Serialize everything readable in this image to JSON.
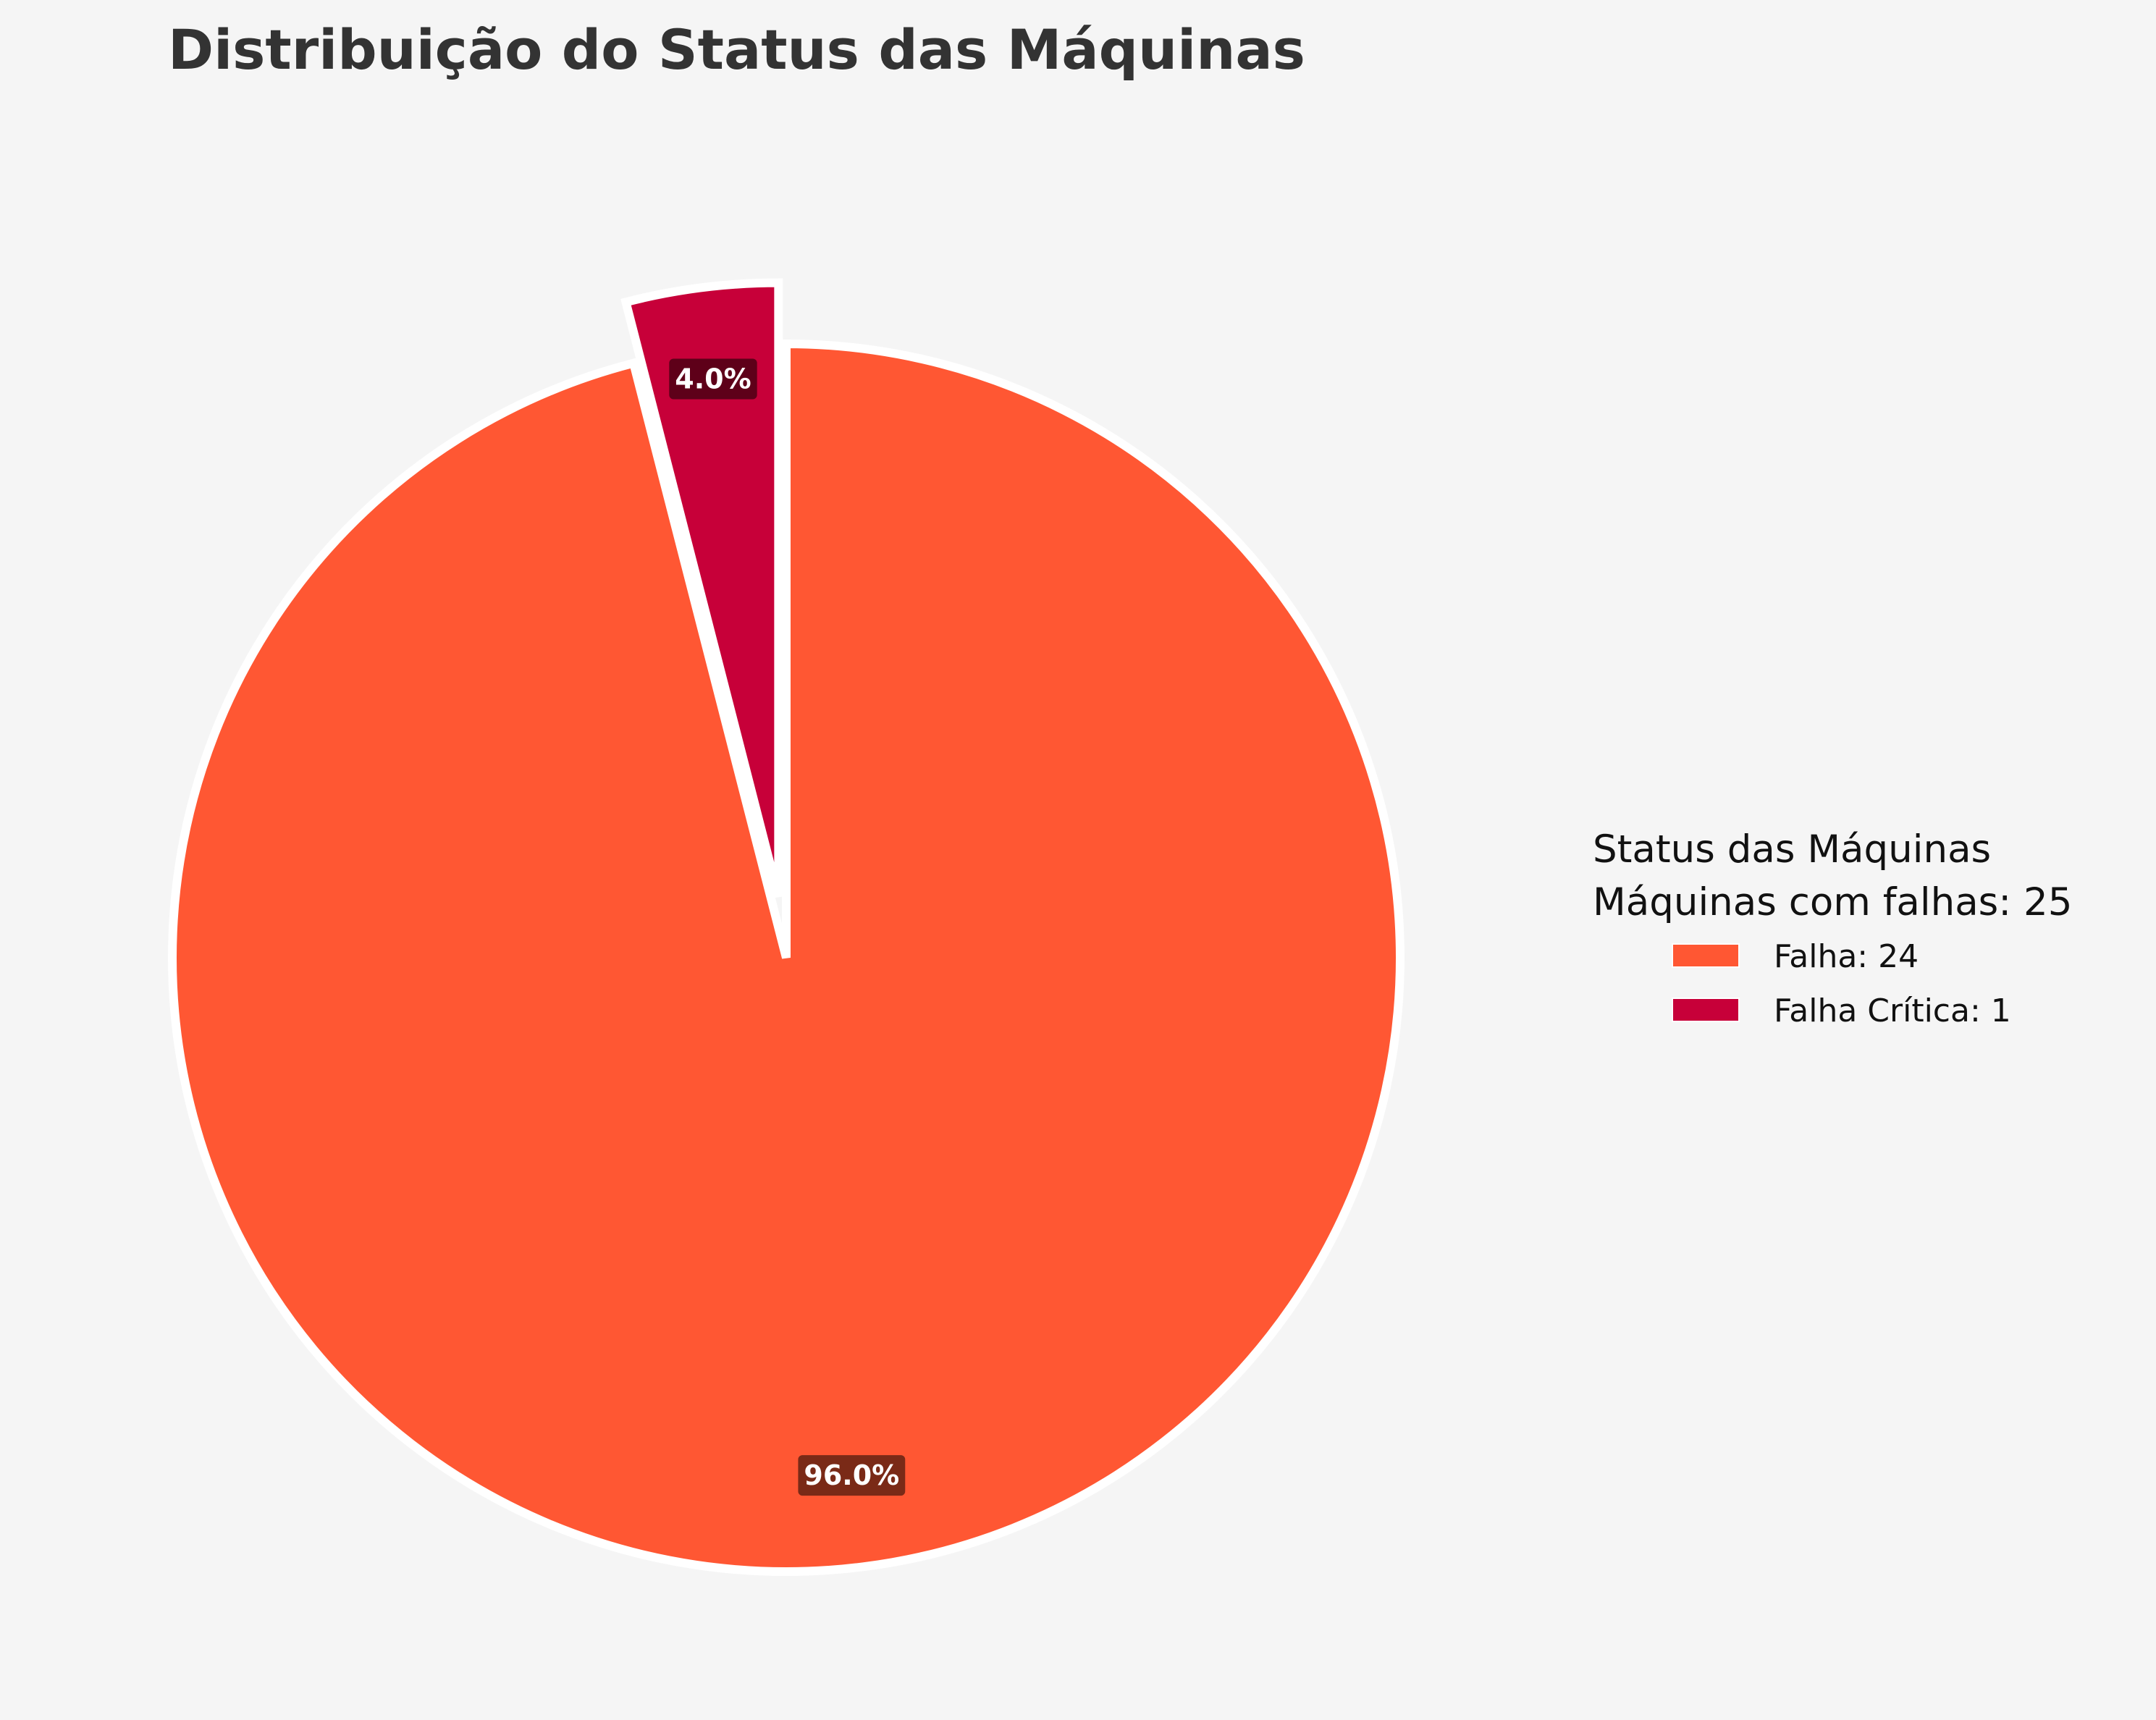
{
  "chart_data": {
    "type": "pie",
    "title": "Distribuição do Status das Máquinas",
    "categories": [
      "Falha",
      "Falha Crítica"
    ],
    "values": [
      24,
      1
    ],
    "percent_labels": [
      "96.0%",
      "4.0%"
    ],
    "colors": [
      "#ff5733",
      "#c70039"
    ],
    "label_box_colors": [
      "#7a2a17",
      "#5e0019"
    ],
    "exploded": [
      false,
      true
    ],
    "start_angle_deg": 90,
    "direction": "clockwise",
    "legend": {
      "title_line1": "Status das Máquinas",
      "title_line2": "Máquinas com falhas: 25",
      "entries": [
        "Falha: 24",
        "Falha Crítica: 1"
      ],
      "placement": "right"
    }
  }
}
